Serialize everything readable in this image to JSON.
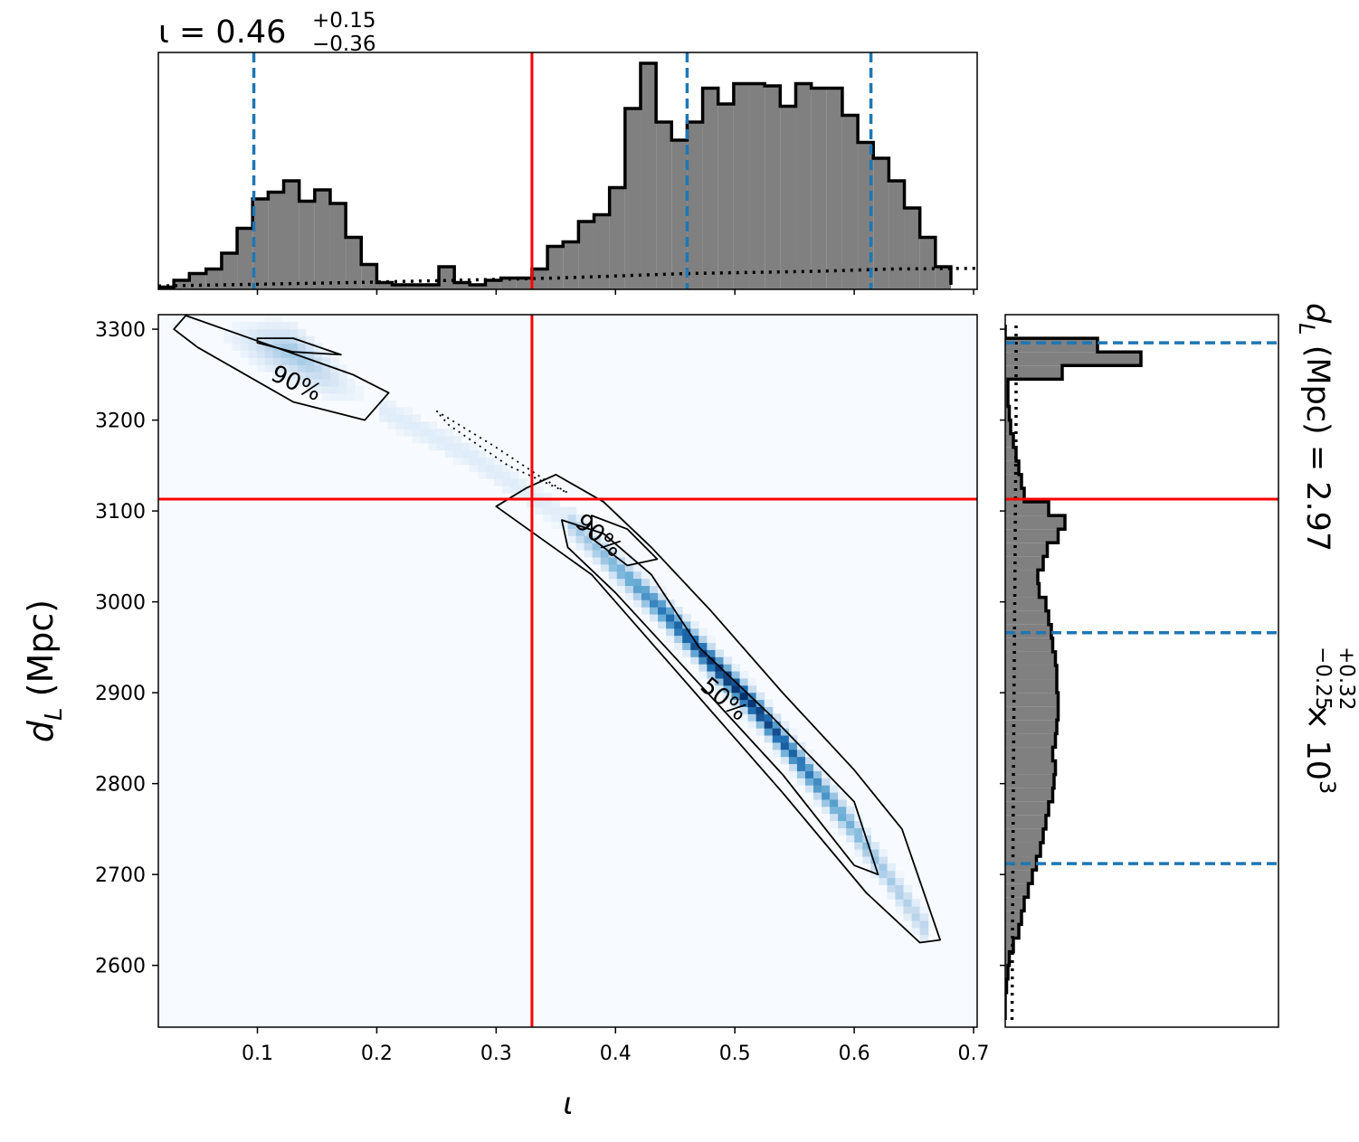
{
  "chart_data": [
    {
      "panel": "top-marginal",
      "type": "bar",
      "title_var": "ι",
      "title_median": "0.46",
      "title_plus": "+0.15",
      "title_minus": "−0.36",
      "xlim": [
        0.017,
        0.703
      ],
      "x_ticks": [
        0.1,
        0.2,
        0.3,
        0.4,
        0.5,
        0.6,
        0.7
      ],
      "yticklabels_visible": false,
      "bin_edges": [
        0.017,
        0.03,
        0.043,
        0.057,
        0.07,
        0.083,
        0.096,
        0.109,
        0.122,
        0.135,
        0.148,
        0.161,
        0.174,
        0.187,
        0.2,
        0.213,
        0.226,
        0.239,
        0.252,
        0.265,
        0.278,
        0.291,
        0.304,
        0.317,
        0.33,
        0.343,
        0.356,
        0.369,
        0.382,
        0.395,
        0.408,
        0.421,
        0.434,
        0.447,
        0.46,
        0.473,
        0.486,
        0.499,
        0.512,
        0.525,
        0.538,
        0.551,
        0.564,
        0.577,
        0.59,
        0.603,
        0.616,
        0.629,
        0.642,
        0.655,
        0.668,
        0.681
      ],
      "counts": [
        0.01,
        0.04,
        0.07,
        0.09,
        0.16,
        0.27,
        0.4,
        0.43,
        0.48,
        0.39,
        0.44,
        0.38,
        0.23,
        0.11,
        0.03,
        0.02,
        0.02,
        0.02,
        0.1,
        0.03,
        0.02,
        0.04,
        0.05,
        0.05,
        0.09,
        0.19,
        0.21,
        0.3,
        0.33,
        0.45,
        0.8,
        1.0,
        0.74,
        0.66,
        0.74,
        0.89,
        0.82,
        0.91,
        0.91,
        0.9,
        0.81,
        0.91,
        0.89,
        0.89,
        0.77,
        0.65,
        0.58,
        0.48,
        0.36,
        0.23,
        0.1,
        0.02
      ],
      "prior_dotted": [
        [
          0.017,
          0.015
        ],
        [
          0.18,
          0.03
        ],
        [
          0.35,
          0.05
        ],
        [
          0.46,
          0.07
        ],
        [
          0.57,
          0.08
        ],
        [
          0.63,
          0.09
        ],
        [
          0.703,
          0.093
        ]
      ],
      "quantile_lines": [
        0.097,
        0.46,
        0.614
      ],
      "injection": 0.33
    },
    {
      "panel": "joint",
      "type": "heatmap",
      "xlabel": "ι",
      "ylabel_var": "d",
      "ylabel_sub": "L",
      "ylabel_unit": "(Mpc)",
      "xlim": [
        0.017,
        0.703
      ],
      "ylim": [
        2532,
        3316
      ],
      "x_ticks": [
        0.1,
        0.2,
        0.3,
        0.4,
        0.5,
        0.6,
        0.7
      ],
      "y_ticks": [
        2600,
        2700,
        2800,
        2900,
        3000,
        3100,
        3200,
        3300
      ],
      "colormap": "Blues",
      "density_ridge": [
        [
          0.05,
          3300
        ],
        [
          0.13,
          3275
        ],
        [
          0.2,
          3215
        ],
        [
          0.28,
          3160
        ],
        [
          0.36,
          3090
        ],
        [
          0.44,
          2990
        ],
        [
          0.52,
          2880
        ],
        [
          0.6,
          2750
        ],
        [
          0.66,
          2640
        ]
      ],
      "contour_levels": [
        "50%",
        "90%"
      ],
      "contour_90_main": [
        [
          0.325,
          3125
        ],
        [
          0.35,
          3140
        ],
        [
          0.39,
          3110
        ],
        [
          0.43,
          3060
        ],
        [
          0.48,
          2990
        ],
        [
          0.54,
          2900
        ],
        [
          0.6,
          2815
        ],
        [
          0.64,
          2750
        ],
        [
          0.672,
          2628
        ],
        [
          0.655,
          2625
        ],
        [
          0.61,
          2680
        ],
        [
          0.54,
          2790
        ],
        [
          0.46,
          2910
        ],
        [
          0.38,
          3030
        ],
        [
          0.3,
          3105
        ]
      ],
      "contour_90_upper": [
        [
          0.04,
          3315
        ],
        [
          0.18,
          3250
        ],
        [
          0.21,
          3230
        ],
        [
          0.19,
          3200
        ],
        [
          0.13,
          3220
        ],
        [
          0.05,
          3280
        ],
        [
          0.03,
          3300
        ]
      ],
      "contour_90_bridge": [
        [
          0.25,
          3210
        ],
        [
          0.3,
          3170
        ],
        [
          0.34,
          3135
        ],
        [
          0.36,
          3120
        ],
        [
          0.31,
          3150
        ],
        [
          0.26,
          3195
        ]
      ],
      "contour_50_main": [
        [
          0.355,
          3090
        ],
        [
          0.39,
          3075
        ],
        [
          0.43,
          3030
        ],
        [
          0.47,
          2950
        ],
        [
          0.53,
          2875
        ],
        [
          0.6,
          2780
        ],
        [
          0.62,
          2700
        ],
        [
          0.6,
          2710
        ],
        [
          0.54,
          2810
        ],
        [
          0.47,
          2910
        ],
        [
          0.4,
          3010
        ],
        [
          0.36,
          3060
        ]
      ],
      "contour_50_small": [
        [
          0.38,
          3095
        ],
        [
          0.41,
          3080
        ],
        [
          0.435,
          3047
        ],
        [
          0.41,
          3040
        ],
        [
          0.38,
          3070
        ]
      ],
      "contour_50_upper": [
        [
          0.1,
          3290
        ],
        [
          0.13,
          3290
        ],
        [
          0.17,
          3272
        ],
        [
          0.13,
          3275
        ],
        [
          0.1,
          3285
        ]
      ],
      "contour_labels": [
        {
          "text": "90%",
          "x": 0.11,
          "y": 3245,
          "angle": 25
        },
        {
          "text": "90%",
          "x": 0.365,
          "y": 3085,
          "angle": 40
        },
        {
          "text": "50%",
          "x": 0.47,
          "y": 2905,
          "angle": 40
        }
      ],
      "injection": {
        "x": 0.33,
        "y": 3113
      }
    },
    {
      "panel": "right-marginal",
      "type": "bar",
      "orientation": "horizontal",
      "label_var": "d",
      "label_sub": "L",
      "label_unit": "(Mpc)",
      "label_median": "2.97",
      "label_plus": "+0.32",
      "label_minus": "−0.25",
      "label_scale": "× 10",
      "label_scale_exp": "3",
      "ylim": [
        2532,
        3316
      ],
      "y_ticks": [
        2600,
        2700,
        2800,
        2900,
        3000,
        3100,
        3200,
        3300
      ],
      "bin_edges": [
        2540,
        2555,
        2570,
        2585,
        2600,
        2615,
        2630,
        2645,
        2660,
        2675,
        2690,
        2705,
        2720,
        2735,
        2750,
        2765,
        2780,
        2795,
        2810,
        2825,
        2840,
        2855,
        2870,
        2885,
        2900,
        2915,
        2930,
        2945,
        2960,
        2975,
        2990,
        3005,
        3020,
        3035,
        3050,
        3065,
        3080,
        3095,
        3110,
        3125,
        3140,
        3155,
        3170,
        3185,
        3200,
        3215,
        3230,
        3245,
        3260,
        3275,
        3290,
        3305
      ],
      "counts": [
        0.0,
        0.0,
        0.01,
        0.02,
        0.03,
        0.06,
        0.1,
        0.12,
        0.14,
        0.17,
        0.2,
        0.23,
        0.26,
        0.28,
        0.3,
        0.32,
        0.35,
        0.36,
        0.37,
        0.35,
        0.37,
        0.38,
        0.39,
        0.39,
        0.38,
        0.38,
        0.37,
        0.35,
        0.34,
        0.32,
        0.3,
        0.25,
        0.24,
        0.28,
        0.31,
        0.39,
        0.44,
        0.32,
        0.14,
        0.12,
        0.1,
        0.08,
        0.06,
        0.04,
        0.03,
        0.02,
        0.02,
        0.42,
        1.0,
        0.68,
        0.0
      ],
      "prior_dotted": [
        [
          2540,
          0.05
        ],
        [
          2800,
          0.06
        ],
        [
          3000,
          0.07
        ],
        [
          3100,
          0.075
        ],
        [
          3200,
          0.08
        ],
        [
          3310,
          0.08
        ]
      ],
      "quantile_lines": [
        2712,
        2966,
        3285
      ],
      "injection": 3113
    }
  ]
}
